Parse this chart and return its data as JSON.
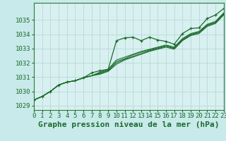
{
  "title": "Graphe pression niveau de la mer (hPa)",
  "bg_color": "#c8eaea",
  "plot_bg_color": "#d8f0f0",
  "grid_color": "#b8d8d8",
  "line_color": "#1a6b2a",
  "marker_color": "#1a6b2a",
  "border_color": "#2a7a3a",
  "xlim": [
    0,
    23
  ],
  "ylim": [
    1028.7,
    1036.2
  ],
  "yticks": [
    1029,
    1030,
    1031,
    1032,
    1033,
    1034,
    1035
  ],
  "xticks": [
    0,
    1,
    2,
    3,
    4,
    5,
    6,
    7,
    8,
    9,
    10,
    11,
    12,
    13,
    14,
    15,
    16,
    17,
    18,
    19,
    20,
    21,
    22,
    23
  ],
  "series": [
    [
      1029.4,
      1029.65,
      1030.0,
      1030.45,
      1030.65,
      1030.75,
      1030.95,
      1031.3,
      1031.45,
      1031.55,
      1033.55,
      1033.75,
      1033.8,
      1033.55,
      1033.8,
      1033.6,
      1033.5,
      1033.3,
      1034.05,
      1034.4,
      1034.45,
      1035.1,
      1035.35,
      1035.8
    ],
    [
      1029.4,
      1029.65,
      1030.0,
      1030.45,
      1030.65,
      1030.75,
      1030.95,
      1031.1,
      1031.2,
      1031.4,
      1031.9,
      1032.2,
      1032.4,
      1032.6,
      1032.8,
      1032.95,
      1033.1,
      1032.95,
      1033.55,
      1033.9,
      1034.05,
      1034.55,
      1034.75,
      1035.35
    ],
    [
      1029.4,
      1029.65,
      1030.0,
      1030.45,
      1030.65,
      1030.75,
      1030.95,
      1031.1,
      1031.25,
      1031.45,
      1032.0,
      1032.25,
      1032.45,
      1032.65,
      1032.85,
      1033.0,
      1033.15,
      1033.0,
      1033.6,
      1033.95,
      1034.1,
      1034.6,
      1034.8,
      1035.4
    ],
    [
      1029.4,
      1029.65,
      1030.0,
      1030.45,
      1030.65,
      1030.75,
      1030.95,
      1031.1,
      1031.3,
      1031.5,
      1032.1,
      1032.3,
      1032.55,
      1032.75,
      1032.9,
      1033.05,
      1033.2,
      1033.05,
      1033.65,
      1034.0,
      1034.15,
      1034.65,
      1034.85,
      1035.45
    ],
    [
      1029.4,
      1029.65,
      1030.0,
      1030.45,
      1030.65,
      1030.75,
      1030.95,
      1031.1,
      1031.35,
      1031.55,
      1032.2,
      1032.4,
      1032.6,
      1032.8,
      1032.95,
      1033.1,
      1033.25,
      1033.1,
      1033.7,
      1034.05,
      1034.2,
      1034.7,
      1034.9,
      1035.5
    ]
  ],
  "title_fontsize": 8,
  "tick_fontsize": 6.5
}
